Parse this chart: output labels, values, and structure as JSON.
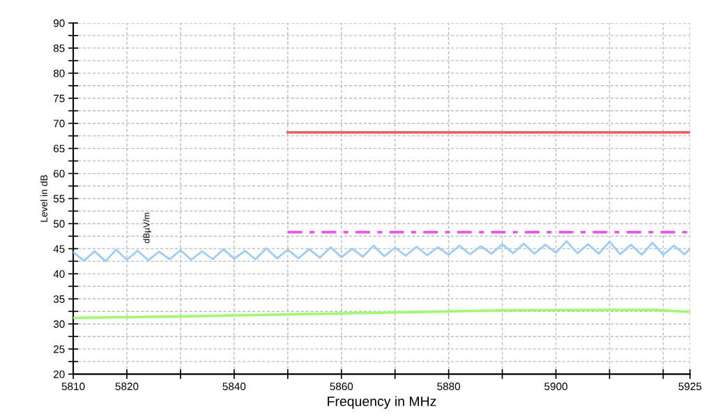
{
  "chart_data": {
    "type": "line",
    "xlabel": "Frequency in MHz",
    "ylabel": "Level in dB",
    "xlim": [
      5810,
      5925
    ],
    "ylim": [
      20,
      90
    ],
    "xticks": [
      5810,
      5820,
      {
        "value": 5830,
        "label": null
      },
      5840,
      {
        "value": 5850,
        "label": null
      },
      5860,
      {
        "value": 5870,
        "label": null
      },
      5880,
      {
        "value": 5890,
        "label": null
      },
      5900,
      {
        "value": 5910,
        "label": null
      },
      {
        "value": 5920,
        "label": null
      },
      5925
    ],
    "yticks": [
      20,
      {
        "value": 22.5,
        "label": null
      },
      25,
      {
        "value": 27.5,
        "label": null
      },
      30,
      {
        "value": 32.5,
        "label": null
      },
      35,
      {
        "value": 37.5,
        "label": null
      },
      40,
      {
        "value": 42.5,
        "label": null
      },
      45,
      {
        "value": 47.5,
        "label": null
      },
      50,
      {
        "value": 52.5,
        "label": null
      },
      55,
      {
        "value": 57.5,
        "label": null
      },
      60,
      {
        "value": 62.5,
        "label": null
      },
      65,
      {
        "value": 67.5,
        "label": null
      },
      70,
      {
        "value": 72.5,
        "label": null
      },
      75,
      {
        "value": 77.5,
        "label": null
      },
      80,
      {
        "value": 82.5,
        "label": null
      },
      85,
      {
        "value": 87.5,
        "label": null
      },
      90
    ],
    "grid": true,
    "legend": false,
    "marker": "none",
    "annotations": [
      "dBµV/m"
    ],
    "series": [
      {
        "color": "#99ccff",
        "line_style": "solid",
        "x": [
          5810,
          5812,
          5814,
          5816,
          5818,
          5820,
          5822,
          5824,
          5826,
          5828,
          5830,
          5832,
          5834,
          5836,
          5838,
          5840,
          5842,
          5844,
          5846,
          5848,
          5850,
          5852,
          5854,
          5856,
          5858,
          5860,
          5862,
          5864,
          5866,
          5868,
          5870,
          5872,
          5874,
          5876,
          5878,
          5880,
          5882,
          5884,
          5886,
          5888,
          5890,
          5892,
          5894,
          5896,
          5898,
          5900,
          5902,
          5904,
          5906,
          5908,
          5910,
          5912,
          5914,
          5916,
          5918,
          5920,
          5922,
          5924,
          5925
        ],
        "values": [
          44.3,
          42.6,
          44.5,
          42.5,
          44.8,
          42.8,
          44.6,
          42.7,
          44.4,
          42.9,
          44.7,
          42.8,
          44.5,
          42.9,
          44.9,
          43.0,
          44.6,
          42.9,
          45.1,
          43.1,
          44.8,
          43.1,
          44.9,
          43.2,
          45.3,
          43.3,
          45.0,
          43.4,
          45.6,
          43.5,
          45.2,
          43.6,
          45.4,
          43.7,
          45.3,
          43.8,
          45.6,
          43.9,
          45.5,
          44.0,
          45.9,
          44.1,
          46.0,
          44.0,
          45.8,
          44.2,
          46.5,
          44.1,
          45.9,
          44.0,
          46.4,
          43.9,
          45.8,
          43.8,
          46.2,
          43.8,
          45.6,
          43.9,
          45.0
        ]
      },
      {
        "color": "#99ff66",
        "line_style": "solid",
        "x": [
          5810,
          5830,
          5850,
          5870,
          5890,
          5910,
          5918,
          5925
        ],
        "values": [
          31.2,
          31.5,
          31.9,
          32.3,
          32.7,
          32.8,
          32.8,
          32.4
        ]
      },
      {
        "color": "#ff5555",
        "line_style": "solid",
        "x": [
          5850,
          5925
        ],
        "values": [
          68.2,
          68.2
        ]
      },
      {
        "color": "#ff44ff",
        "line_style": "dashdot",
        "x": [
          5850,
          5925
        ],
        "values": [
          48.3,
          48.3
        ]
      }
    ]
  }
}
